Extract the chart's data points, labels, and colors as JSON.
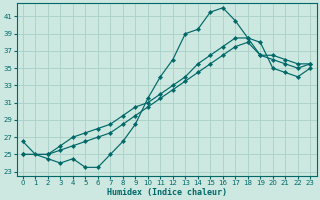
{
  "xlabel": "Humidex (Indice chaleur)",
  "bg_color": "#cce8e0",
  "grid_color": "#a8cfc8",
  "line_color": "#006868",
  "xlim": [
    -0.5,
    23.5
  ],
  "ylim": [
    22.5,
    42.5
  ],
  "xticks": [
    0,
    1,
    2,
    3,
    4,
    5,
    6,
    7,
    8,
    9,
    10,
    11,
    12,
    13,
    14,
    15,
    16,
    17,
    18,
    19,
    20,
    21,
    22,
    23
  ],
  "yticks": [
    23,
    25,
    27,
    29,
    31,
    33,
    35,
    37,
    39,
    41
  ],
  "line1_x": [
    0,
    1,
    2,
    3,
    4,
    5,
    6,
    7,
    8,
    9,
    10,
    11,
    12,
    13,
    14,
    15,
    16,
    17,
    18,
    19,
    20,
    21,
    22,
    23
  ],
  "line1_y": [
    26.5,
    25.0,
    24.5,
    24.0,
    24.5,
    23.5,
    23.5,
    25.0,
    26.5,
    28.5,
    31.5,
    34.0,
    36.0,
    39.0,
    39.5,
    41.5,
    42.0,
    40.5,
    38.5,
    38.0,
    35.0,
    34.5,
    34.0,
    35.0
  ],
  "line2_x": [
    0,
    2,
    3,
    4,
    5,
    6,
    7,
    8,
    9,
    10,
    11,
    12,
    13,
    14,
    15,
    16,
    17,
    18,
    19,
    20,
    21,
    22,
    23
  ],
  "line2_y": [
    25.0,
    25.0,
    25.5,
    26.0,
    26.5,
    27.0,
    27.5,
    28.5,
    29.5,
    30.5,
    31.5,
    32.5,
    33.5,
    34.5,
    35.5,
    36.5,
    37.5,
    38.0,
    36.5,
    36.0,
    35.5,
    35.0,
    35.5
  ],
  "line3_x": [
    0,
    2,
    3,
    4,
    5,
    6,
    7,
    8,
    9,
    10,
    11,
    12,
    13,
    14,
    15,
    16,
    17,
    18,
    19,
    20,
    21,
    22,
    23
  ],
  "line3_y": [
    25.0,
    25.0,
    26.0,
    27.0,
    27.5,
    28.0,
    28.5,
    29.5,
    30.5,
    31.0,
    32.0,
    33.0,
    34.0,
    35.5,
    36.5,
    37.5,
    38.5,
    38.5,
    36.5,
    36.5,
    36.0,
    35.5,
    35.5
  ]
}
